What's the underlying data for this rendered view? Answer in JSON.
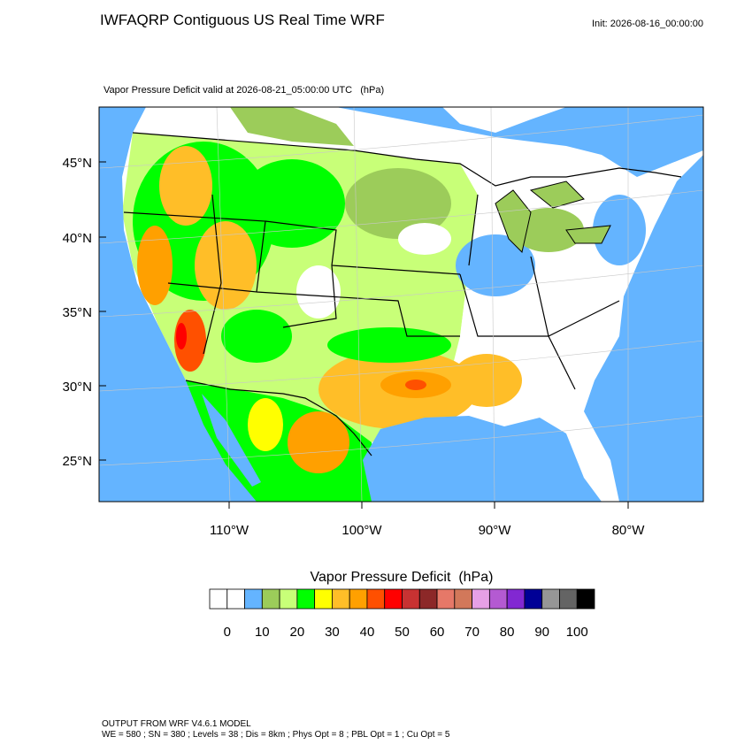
{
  "header": {
    "title": "IWFAQRP Contiguous US Real Time WRF",
    "init": "Init: 2026-08-16_00:00:00"
  },
  "map": {
    "subtitle": "Vapor Pressure Deficit valid at 2026-08-21_05:00:00 UTC   (hPa)",
    "lat_labels": [
      "45°N",
      "40°N",
      "35°N",
      "30°N",
      "25°N"
    ],
    "lon_labels": [
      "110°W",
      "100°W",
      "90°W",
      "80°W"
    ]
  },
  "colorbar": {
    "title": "Vapor Pressure Deficit  (hPa)",
    "colors": [
      "#ffffff",
      "#ffffff",
      "#64b4ff",
      "#9ccc5a",
      "#c8ff78",
      "#00ff00",
      "#ffff00",
      "#ffbe28",
      "#ffa000",
      "#ff5000",
      "#ff0000",
      "#c83232",
      "#8c2828",
      "#e67868",
      "#d2785a",
      "#e6a0e6",
      "#b45ad2",
      "#8228d2",
      "#000096",
      "#969696",
      "#646464",
      "#000000"
    ],
    "labels": [
      0,
      10,
      20,
      30,
      40,
      50,
      60,
      70,
      80,
      90,
      100
    ]
  },
  "footer": {
    "lines": [
      "OUTPUT FROM WRF V4.6.1 MODEL",
      "WE = 580 ; SN = 380 ; Levels = 38 ; Dis = 8km ; Phys Opt = 8 ; PBL Opt = 1 ; Cu Opt = 5"
    ]
  }
}
